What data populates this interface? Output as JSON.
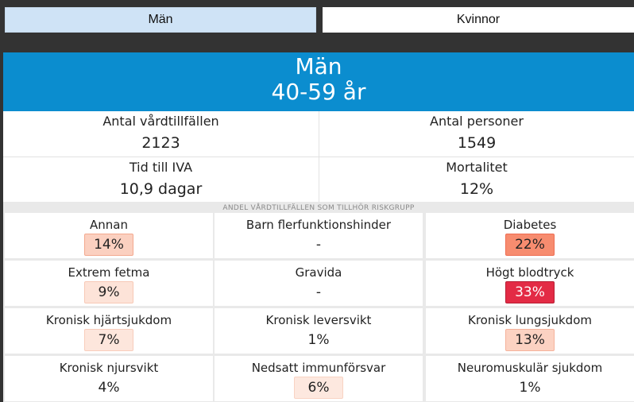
{
  "tabs": {
    "men": "Män",
    "women": "Kvinnor"
  },
  "header": {
    "title": "Män",
    "subtitle": "40-59 år"
  },
  "stats": [
    {
      "label": "Antal vårdtillfällen",
      "value": "2123"
    },
    {
      "label": "Antal personer",
      "value": "1549"
    },
    {
      "label": "Tid till IVA",
      "value": "10,9 dagar"
    },
    {
      "label": "Mortalitet",
      "value": "12%"
    }
  ],
  "risk_title": "ANDEL VÅRDTILLFÄLLEN SOM TILLHÖR RISKGRUPP",
  "risk_groups": [
    {
      "label": "Annan",
      "value": "14%",
      "color": "#fbd0c0",
      "border": "#f3a98f"
    },
    {
      "label": "Barn flerfunktionshinder",
      "value": "-",
      "color": "#ffffff",
      "border": "#ffffff"
    },
    {
      "label": "Diabetes",
      "value": "22%",
      "color": "#f78c6f",
      "border": "#ee6d52"
    },
    {
      "label": "Extrem fetma",
      "value": "9%",
      "color": "#fde3d8",
      "border": "#f7c9b6"
    },
    {
      "label": "Gravida",
      "value": "-",
      "color": "#ffffff",
      "border": "#ffffff"
    },
    {
      "label": "Högt blodtryck",
      "value": "33%",
      "color": "#e32b45",
      "border": "#b81d33"
    },
    {
      "label": "Kronisk hjärtsjukdom",
      "value": "7%",
      "color": "#fde6dc",
      "border": "#f8cdbc"
    },
    {
      "label": "Kronisk leversvikt",
      "value": "1%",
      "color": "#ffffff",
      "border": "#ffffff"
    },
    {
      "label": "Kronisk lungsjukdom",
      "value": "13%",
      "color": "#fcd2c2",
      "border": "#f5b29b"
    },
    {
      "label": "Kronisk njursvikt",
      "value": "4%",
      "color": "#ffffff",
      "border": "#ffffff"
    },
    {
      "label": "Nedsatt immunförsvar",
      "value": "6%",
      "color": "#fde8df",
      "border": "#f9d3c3"
    },
    {
      "label": "Neuromuskulär sjukdom",
      "value": "1%",
      "color": "#ffffff",
      "border": "#ffffff"
    }
  ]
}
